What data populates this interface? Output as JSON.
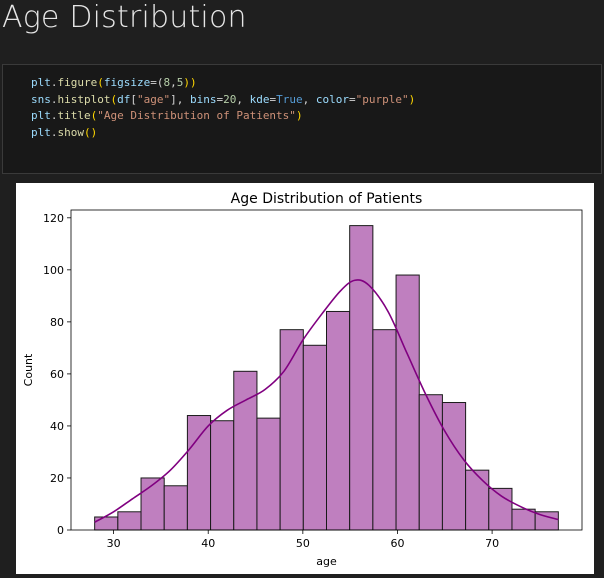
{
  "page": {
    "section_title": "Age Distribution"
  },
  "code_cell": {
    "lines": [
      [
        {
          "t": "plt",
          "c": "var"
        },
        {
          "t": ".",
          "c": ""
        },
        {
          "t": "figure",
          "c": "fn"
        },
        {
          "t": "(",
          "c": "p"
        },
        {
          "t": "figsize",
          "c": "var"
        },
        {
          "t": "=(",
          "c": ""
        },
        {
          "t": "8",
          "c": "num"
        },
        {
          "t": ",",
          "c": ""
        },
        {
          "t": "5",
          "c": "num"
        },
        {
          "t": "))",
          "c": "p"
        }
      ],
      [
        {
          "t": "sns",
          "c": "var"
        },
        {
          "t": ".",
          "c": ""
        },
        {
          "t": "histplot",
          "c": "fn"
        },
        {
          "t": "(",
          "c": "p"
        },
        {
          "t": "df",
          "c": "var"
        },
        {
          "t": "[",
          "c": ""
        },
        {
          "t": "\"age\"",
          "c": "str"
        },
        {
          "t": "], ",
          "c": ""
        },
        {
          "t": "bins",
          "c": "var"
        },
        {
          "t": "=",
          "c": ""
        },
        {
          "t": "20",
          "c": "num"
        },
        {
          "t": ", ",
          "c": ""
        },
        {
          "t": "kde",
          "c": "var"
        },
        {
          "t": "=",
          "c": ""
        },
        {
          "t": "True",
          "c": "kw"
        },
        {
          "t": ", ",
          "c": ""
        },
        {
          "t": "color",
          "c": "var"
        },
        {
          "t": "=",
          "c": ""
        },
        {
          "t": "\"purple\"",
          "c": "str"
        },
        {
          "t": ")",
          "c": "p"
        }
      ],
      [
        {
          "t": "plt",
          "c": "var"
        },
        {
          "t": ".",
          "c": ""
        },
        {
          "t": "title",
          "c": "fn"
        },
        {
          "t": "(",
          "c": "p"
        },
        {
          "t": "\"Age Distribution of Patients\"",
          "c": "str"
        },
        {
          "t": ")",
          "c": "p"
        }
      ],
      [
        {
          "t": "plt",
          "c": "var"
        },
        {
          "t": ".",
          "c": ""
        },
        {
          "t": "show",
          "c": "fn"
        },
        {
          "t": "()",
          "c": "p"
        }
      ]
    ]
  },
  "chart_data": {
    "type": "bar",
    "title": "Age Distribution of Patients",
    "xlabel": "age",
    "ylabel": "Count",
    "bin_edges": [
      28.0,
      30.45,
      32.9,
      35.35,
      37.8,
      40.25,
      42.7,
      45.15,
      47.6,
      50.05,
      52.5,
      54.95,
      57.4,
      59.85,
      62.3,
      64.75,
      67.2,
      69.65,
      72.1,
      74.55,
      77.0
    ],
    "values": [
      5,
      7,
      20,
      17,
      44,
      42,
      61,
      43,
      77,
      71,
      84,
      117,
      77,
      98,
      52,
      49,
      23,
      16,
      8,
      7
    ],
    "kde": {
      "x": [
        28,
        30,
        32,
        34,
        36,
        38,
        40,
        42,
        44,
        46,
        48,
        50,
        52,
        54,
        55.5,
        57,
        59,
        61,
        63,
        65,
        67,
        69,
        71,
        73,
        75,
        77
      ],
      "y": [
        3,
        7,
        12,
        17,
        23,
        31,
        40,
        46,
        50,
        54,
        61,
        73,
        83,
        92,
        96,
        94,
        84,
        68,
        52,
        38,
        27,
        19,
        13,
        9,
        6,
        4
      ]
    },
    "xlim": [
      25.5,
      79.5
    ],
    "ylim": [
      0,
      123
    ],
    "xticks": [
      30,
      40,
      50,
      60,
      70
    ],
    "yticks": [
      0,
      20,
      40,
      60,
      80,
      100,
      120
    ],
    "bar_color": "#bf7fbf",
    "edge_color": "#1a1a1a",
    "kde_color": "#800080",
    "grid": false
  }
}
